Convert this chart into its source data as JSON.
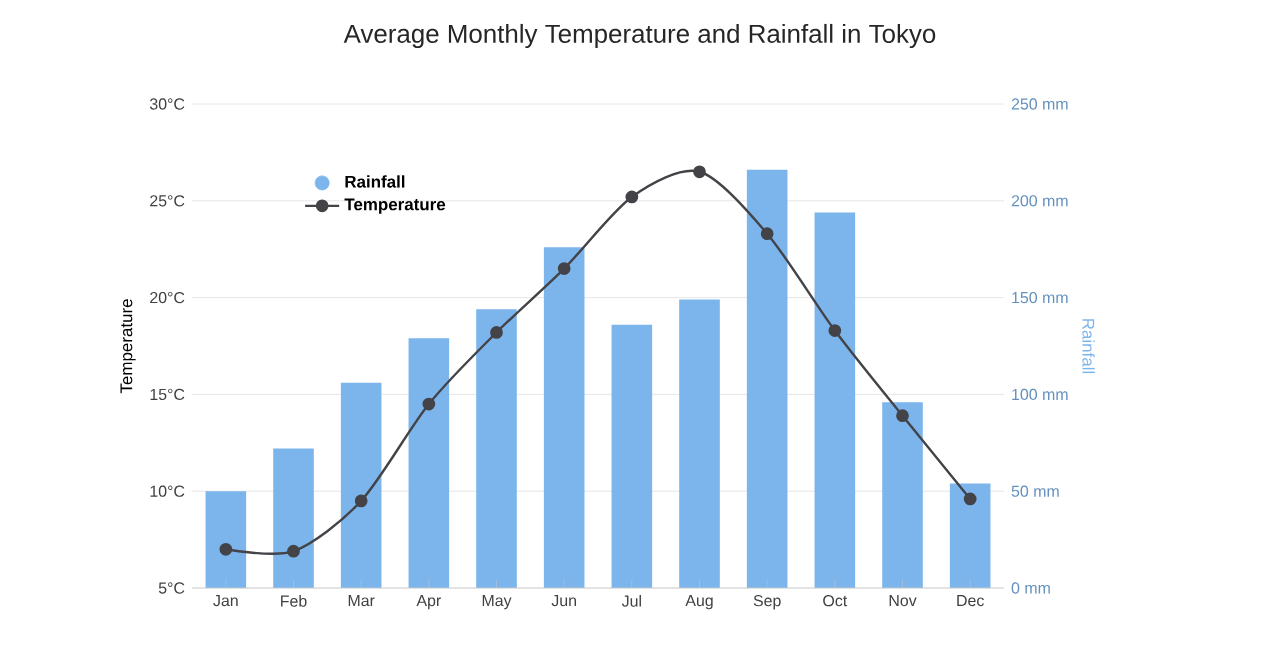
{
  "chart_data": {
    "type": "bar",
    "title": "Average Monthly Temperature and Rainfall in Tokyo",
    "categories": [
      "Jan",
      "Feb",
      "Mar",
      "Apr",
      "May",
      "Jun",
      "Jul",
      "Aug",
      "Sep",
      "Oct",
      "Nov",
      "Dec"
    ],
    "series": [
      {
        "name": "Rainfall",
        "axis": "y2",
        "color": "#7cb5ec",
        "values": [
          50,
          72,
          106,
          129,
          144,
          176,
          136,
          149,
          216,
          194,
          96,
          54
        ]
      },
      {
        "name": "Temperature",
        "type": "line",
        "color": "#434348",
        "values": [
          7.0,
          6.9,
          9.5,
          14.5,
          18.2,
          21.5,
          25.2,
          26.5,
          23.3,
          18.3,
          13.9,
          9.6
        ]
      }
    ],
    "ylabel": "Temperature",
    "y2label": "Rainfall",
    "ylim": [
      5,
      30
    ],
    "yticks": [
      {
        "value": 5,
        "label": "5°C"
      },
      {
        "value": 10,
        "label": "10°C"
      },
      {
        "value": 15,
        "label": "15°C"
      },
      {
        "value": 20,
        "label": "20°C"
      },
      {
        "value": 25,
        "label": "25°C"
      },
      {
        "value": 30,
        "label": "30°C"
      }
    ],
    "y2lim": [
      0,
      250
    ],
    "y2ticks": [
      {
        "value": 0,
        "label": "0 mm"
      },
      {
        "value": 50,
        "label": "50 mm"
      },
      {
        "value": 100,
        "label": "100 mm"
      },
      {
        "value": 150,
        "label": "150 mm"
      },
      {
        "value": 200,
        "label": "200 mm"
      },
      {
        "value": 250,
        "label": "250 mm"
      }
    ],
    "grid": "y",
    "legend": "top left",
    "marker": "circle",
    "line_style": "solid"
  }
}
